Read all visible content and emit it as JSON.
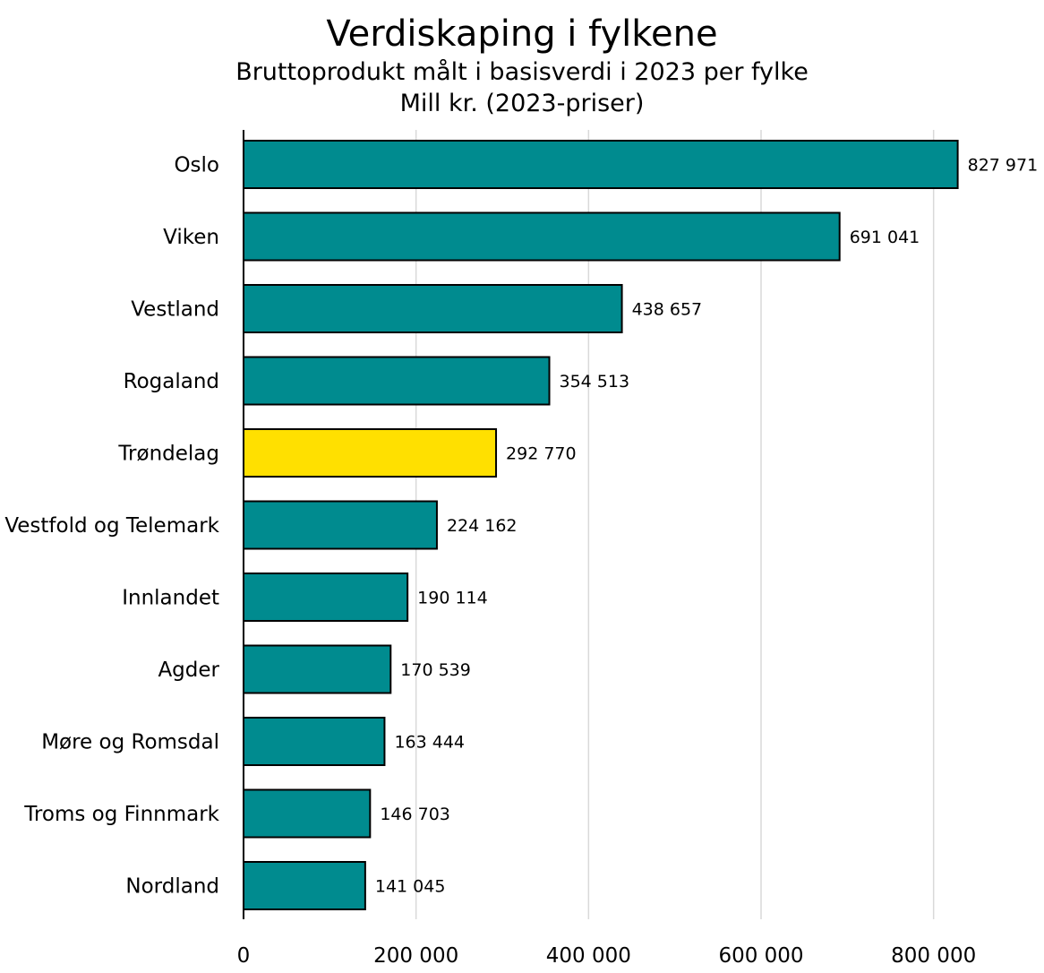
{
  "chart_data": {
    "type": "bar",
    "orientation": "horizontal",
    "title": "Verdiskaping i fylkene",
    "subtitle": "Bruttoprodukt målt i basisverdi i 2023 per fylke",
    "unit_line": "Mill kr. (2023-priser)",
    "categories": [
      "Oslo",
      "Viken",
      "Vestland",
      "Rogaland",
      "Trøndelag",
      "Vestfold og Telemark",
      "Innlandet",
      "Agder",
      "Møre og Romsdal",
      "Troms og Finnmark",
      "Nordland"
    ],
    "values": [
      827971,
      691041,
      438657,
      354513,
      292770,
      224162,
      190114,
      170539,
      163444,
      146703,
      141045
    ],
    "value_labels": [
      "827 971",
      "691 041",
      "438 657",
      "354 513",
      "292 770",
      "224 162",
      "190 114",
      "170 539",
      "163 444",
      "146 703",
      "141 045"
    ],
    "highlight_category": "Trøndelag",
    "colors": {
      "default": "#008b8f",
      "highlight": "#ffe000",
      "gridline": "#d9d9d9"
    },
    "xlim": [
      0,
      900000
    ],
    "xticks": [
      0,
      200000,
      400000,
      600000,
      800000
    ],
    "xtick_labels": [
      "0",
      "200 000",
      "400 000",
      "600 000",
      "800 000"
    ],
    "grid": true
  }
}
